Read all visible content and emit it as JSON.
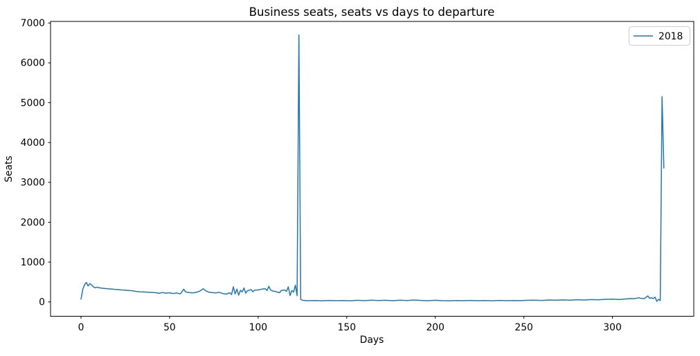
{
  "chart_data": {
    "type": "line",
    "title": "Business seats, seats vs days to departure",
    "xlabel": "Days",
    "ylabel": "Seats",
    "xticks": [
      0,
      50,
      100,
      150,
      200,
      250,
      300
    ],
    "yticks": [
      0,
      1000,
      2000,
      3000,
      4000,
      5000,
      6000,
      7000
    ],
    "xlim": [
      -17.2,
      345.9
    ],
    "ylim": [
      -360,
      7040
    ],
    "grid": false,
    "background_color": "#ffffff",
    "axes_color": "#000000",
    "legend": {
      "position": "upper right",
      "entries": [
        {
          "label": "2018",
          "color": "#1f77b4"
        }
      ]
    },
    "series": [
      {
        "name": "2018",
        "color": "#1f77b4",
        "points": [
          [
            0,
            70
          ],
          [
            1,
            320
          ],
          [
            2,
            430
          ],
          [
            3,
            490
          ],
          [
            4,
            400
          ],
          [
            5,
            460
          ],
          [
            6,
            425
          ],
          [
            7,
            375
          ],
          [
            8,
            355
          ],
          [
            9,
            370
          ],
          [
            11,
            350
          ],
          [
            13,
            340
          ],
          [
            15,
            330
          ],
          [
            17,
            325
          ],
          [
            19,
            315
          ],
          [
            21,
            310
          ],
          [
            23,
            300
          ],
          [
            25,
            295
          ],
          [
            27,
            285
          ],
          [
            29,
            280
          ],
          [
            31,
            265
          ],
          [
            33,
            255
          ],
          [
            35,
            250
          ],
          [
            37,
            245
          ],
          [
            39,
            240
          ],
          [
            41,
            235
          ],
          [
            43,
            228
          ],
          [
            44,
            215
          ],
          [
            46,
            235
          ],
          [
            48,
            220
          ],
          [
            50,
            230
          ],
          [
            52,
            210
          ],
          [
            54,
            225
          ],
          [
            56,
            200
          ],
          [
            57,
            255
          ],
          [
            58,
            320
          ],
          [
            59,
            250
          ],
          [
            61,
            235
          ],
          [
            63,
            225
          ],
          [
            65,
            240
          ],
          [
            67,
            270
          ],
          [
            68,
            300
          ],
          [
            69,
            330
          ],
          [
            70,
            290
          ],
          [
            72,
            245
          ],
          [
            74,
            235
          ],
          [
            76,
            225
          ],
          [
            78,
            240
          ],
          [
            80,
            210
          ],
          [
            82,
            195
          ],
          [
            84,
            230
          ],
          [
            85,
            185
          ],
          [
            86,
            380
          ],
          [
            87,
            200
          ],
          [
            88,
            320
          ],
          [
            89,
            170
          ],
          [
            90,
            290
          ],
          [
            91,
            250
          ],
          [
            92,
            350
          ],
          [
            93,
            220
          ],
          [
            94,
            280
          ],
          [
            96,
            310
          ],
          [
            97,
            255
          ],
          [
            98,
            295
          ],
          [
            100,
            300
          ],
          [
            102,
            320
          ],
          [
            104,
            330
          ],
          [
            105,
            285
          ],
          [
            106,
            390
          ],
          [
            107,
            305
          ],
          [
            108,
            275
          ],
          [
            110,
            260
          ],
          [
            112,
            230
          ],
          [
            113,
            285
          ],
          [
            115,
            300
          ],
          [
            116,
            265
          ],
          [
            117,
            380
          ],
          [
            118,
            160
          ],
          [
            119,
            285
          ],
          [
            120,
            245
          ],
          [
            121,
            420
          ],
          [
            122,
            155
          ],
          [
            123,
            6700
          ],
          [
            124,
            65
          ],
          [
            125,
            40
          ],
          [
            128,
            30
          ],
          [
            132,
            36
          ],
          [
            136,
            28
          ],
          [
            140,
            38
          ],
          [
            144,
            30
          ],
          [
            148,
            35
          ],
          [
            152,
            28
          ],
          [
            156,
            40
          ],
          [
            160,
            32
          ],
          [
            164,
            45
          ],
          [
            168,
            35
          ],
          [
            172,
            40
          ],
          [
            176,
            30
          ],
          [
            180,
            42
          ],
          [
            184,
            35
          ],
          [
            188,
            48
          ],
          [
            192,
            38
          ],
          [
            196,
            30
          ],
          [
            200,
            40
          ],
          [
            204,
            32
          ],
          [
            208,
            28
          ],
          [
            212,
            35
          ],
          [
            216,
            30
          ],
          [
            220,
            38
          ],
          [
            224,
            30
          ],
          [
            228,
            35
          ],
          [
            232,
            28
          ],
          [
            236,
            38
          ],
          [
            240,
            30
          ],
          [
            244,
            35
          ],
          [
            248,
            32
          ],
          [
            252,
            40
          ],
          [
            256,
            45
          ],
          [
            260,
            38
          ],
          [
            264,
            48
          ],
          [
            268,
            42
          ],
          [
            272,
            50
          ],
          [
            276,
            45
          ],
          [
            280,
            55
          ],
          [
            284,
            48
          ],
          [
            288,
            58
          ],
          [
            292,
            52
          ],
          [
            296,
            65
          ],
          [
            300,
            70
          ],
          [
            304,
            62
          ],
          [
            308,
            75
          ],
          [
            310,
            85
          ],
          [
            312,
            80
          ],
          [
            314,
            95
          ],
          [
            315,
            105
          ],
          [
            316,
            90
          ],
          [
            318,
            85
          ],
          [
            320,
            150
          ],
          [
            321,
            90
          ],
          [
            322,
            105
          ],
          [
            323,
            85
          ],
          [
            324,
            120
          ],
          [
            325,
            15
          ],
          [
            326,
            65
          ],
          [
            327,
            35
          ],
          [
            328,
            5150
          ],
          [
            329,
            3360
          ]
        ]
      }
    ]
  }
}
